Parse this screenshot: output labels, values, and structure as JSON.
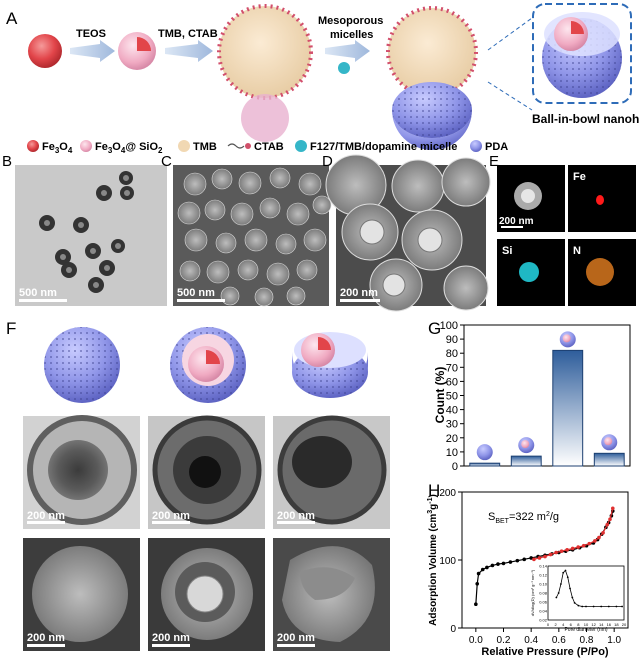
{
  "panel_labels": {
    "a": "A",
    "b": "B",
    "c": "C",
    "d": "D",
    "e": "E",
    "f": "F",
    "g": "G",
    "h": "H"
  },
  "scheme": {
    "step1": "TEOS",
    "step2": "TMB, CTAB",
    "step3_line1": "Mesoporous",
    "step3_line2": "micelles",
    "product": "Ball-in-bowl nanohybrid"
  },
  "legend": [
    {
      "label_main": "Fe",
      "sub": "3",
      "label_tail": "O",
      "sub2": "4",
      "icon": "fe3o4-sphere-icon",
      "color": "#e2454a"
    },
    {
      "label_main": "Fe",
      "sub": "3",
      "label_tail": "O",
      "sub2": "4",
      "extra": "@ SiO",
      "sub3": "2",
      "icon": "core-shell-icon",
      "color": "#f2b6c8"
    },
    {
      "label": "TMB",
      "icon": "tmb-droplet-icon",
      "color": "#f1d8b3"
    },
    {
      "label": "CTAB",
      "icon": "ctab-surfactant-icon",
      "color": "#d0506a"
    },
    {
      "label": "F127/TMB/dopamine micelle",
      "icon": "micelle-icon",
      "color": "#35b6c8"
    },
    {
      "label": "PDA",
      "icon": "pda-sphere-icon",
      "color": "#8f95e8"
    }
  ],
  "scale_bars": {
    "b": "500 nm",
    "c": "500 nm",
    "d": "200 nm",
    "e": "200 nm",
    "f1": "200 nm",
    "f2": "200 nm",
    "f3": "200 nm",
    "f4": "200 nm",
    "f5": "200 nm",
    "f6": "200 nm"
  },
  "eds": {
    "fe": "Fe",
    "si": "Si",
    "n": "N"
  },
  "chart_data": [
    {
      "type": "bar",
      "panel": "G",
      "categories": [
        "bowl",
        "ball-in-bowl (single open)",
        "ball-in-bowl",
        "ball-in-sphere"
      ],
      "values": [
        2,
        7,
        82,
        9
      ],
      "ylabel": "Count (%)",
      "ylim": [
        0,
        100
      ],
      "yticks": [
        0,
        10,
        20,
        30,
        40,
        50,
        60,
        70,
        80,
        90,
        100
      ]
    },
    {
      "type": "line",
      "panel": "H",
      "annotation": "S",
      "annotation_sub": "BET",
      "annotation_tail": "=322 m",
      "annotation_sup": "2",
      "annotation_end": "/g",
      "xlabel": "Relative Pressure (P/Po)",
      "ylabel": "Adsorption Volume (cm",
      "ylabel_sup": "3",
      "ylabel_tail": "g",
      "ylabel_sup2": "-1",
      "ylabel_end": ")",
      "xlim": [
        -0.1,
        1.1
      ],
      "ylim": [
        0,
        200
      ],
      "xticks": [
        "0.0",
        "0.2",
        "0.4",
        "0.6",
        "0.8",
        "1.0"
      ],
      "yticks": [
        "0",
        "100",
        "200"
      ],
      "series": [
        {
          "color": "#000000",
          "x": [
            0.0,
            0.01,
            0.02,
            0.05,
            0.08,
            0.12,
            0.16,
            0.2,
            0.25,
            0.3,
            0.35,
            0.4,
            0.45,
            0.5,
            0.55,
            0.6,
            0.65,
            0.7,
            0.75,
            0.8,
            0.85,
            0.88,
            0.91,
            0.94,
            0.96,
            0.98,
            0.99
          ],
          "y": [
            35,
            65,
            80,
            86,
            89,
            92,
            94,
            95,
            97,
            99,
            101,
            103,
            105,
            107,
            109,
            111,
            113,
            115,
            118,
            121,
            125,
            130,
            138,
            148,
            155,
            165,
            172
          ]
        },
        {
          "color": "#e03030",
          "x": [
            0.99,
            0.97,
            0.95,
            0.92,
            0.89,
            0.86,
            0.82,
            0.78,
            0.74,
            0.7,
            0.66,
            0.62,
            0.58,
            0.54,
            0.5,
            0.46,
            0.42
          ],
          "y": [
            176,
            160,
            152,
            140,
            133,
            128,
            124,
            121,
            119,
            117,
            115,
            113,
            111,
            108,
            105,
            103,
            101
          ]
        }
      ],
      "inset": {
        "xlabel": "Pore diameter (nm)",
        "ylabel": "dV/dlog(D) (cm³ g⁻¹ nm⁻¹)",
        "xticks": [
          "0",
          "2",
          "4",
          "6",
          "8",
          "10",
          "12",
          "14",
          "16",
          "18",
          "20"
        ],
        "yticks": [
          "0.02",
          "0.04",
          "0.06",
          "0.08",
          "0.10",
          "0.12",
          "0.14"
        ],
        "xlim": [
          0,
          20
        ],
        "ylim": [
          0.02,
          0.14
        ],
        "x": [
          2.2,
          2.8,
          3.4,
          4,
          4.6,
          5.2,
          5.8,
          6.4,
          7,
          8,
          9,
          10,
          12,
          14,
          16,
          18,
          19.5
        ],
        "y": [
          0.07,
          0.08,
          0.1,
          0.125,
          0.13,
          0.115,
          0.09,
          0.07,
          0.058,
          0.052,
          0.05,
          0.05,
          0.05,
          0.05,
          0.05,
          0.05,
          0.05
        ]
      }
    }
  ]
}
